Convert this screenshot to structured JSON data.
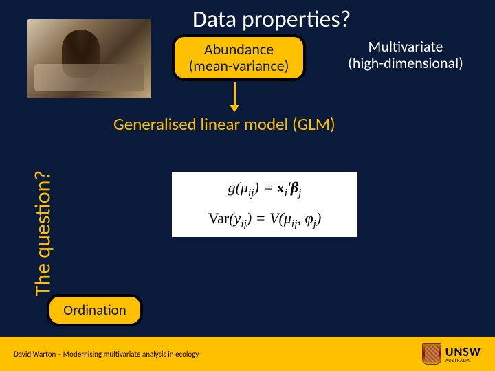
{
  "title": "Data properties?",
  "photo": {
    "alt": "child-with-microscope"
  },
  "boxes": {
    "abundance": {
      "line1": "Abundance",
      "line2": "(mean-variance)"
    },
    "multivariate": {
      "line1": "Multivariate",
      "line2": "(high-dimensional)"
    },
    "ordination": "Ordination"
  },
  "glm": "Generalised linear model (GLM)",
  "vertical": "The question?",
  "equations": {
    "eq1_lhs_func": "g",
    "eq1_lhs_arg": "μ",
    "eq1_lhs_sub": "ij",
    "eq1_rhs_x": "x",
    "eq1_rhs_xsub": "i",
    "eq1_rhs_prime": "′",
    "eq1_rhs_beta": "β",
    "eq1_rhs_betasub": "j",
    "eq2_var": "Var",
    "eq2_y": "y",
    "eq2_ysub": "ij",
    "eq2_V": "V",
    "eq2_mu": "μ",
    "eq2_musub": "ij",
    "eq2_phi": "φ",
    "eq2_phisub": "j"
  },
  "footer": {
    "text": "David Warton – Modernising multivariate analysis in ecology",
    "logo_main": "UNSW",
    "logo_sub": "AUSTRALIA"
  },
  "colors": {
    "background": "#0a1a3a",
    "accent": "#ffc000",
    "text_light": "#ffffff",
    "text_dark": "#000000"
  }
}
